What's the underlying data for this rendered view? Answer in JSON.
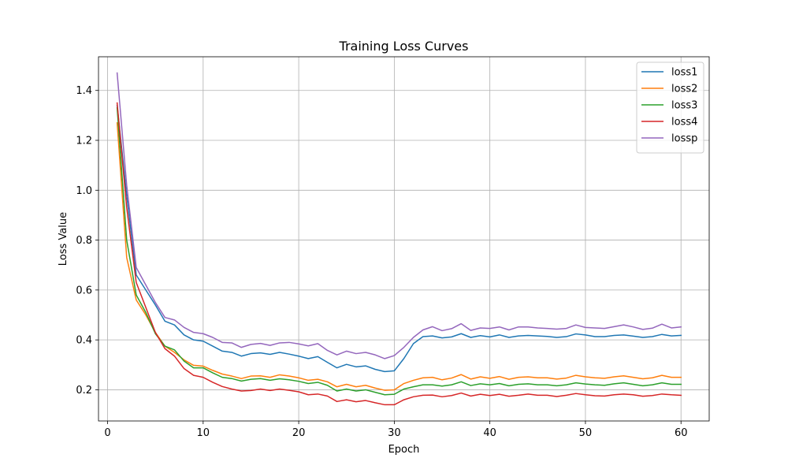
{
  "chart_data": {
    "type": "line",
    "title": "Training Loss Curves",
    "xlabel": "Epoch",
    "ylabel": "Loss Value",
    "xlim": [
      -0.95,
      62.95
    ],
    "ylim": [
      0.075,
      1.535
    ],
    "xticks": [
      0,
      10,
      20,
      30,
      40,
      50,
      60
    ],
    "yticks": [
      0.2,
      0.4,
      0.6,
      0.8,
      1.0,
      1.2,
      1.4
    ],
    "ytick_labels": [
      "0.2",
      "0.4",
      "0.6",
      "0.8",
      "1.0",
      "1.2",
      "1.4"
    ],
    "grid": true,
    "legend_position": "top-right",
    "x": [
      1,
      2,
      3,
      4,
      5,
      6,
      7,
      8,
      9,
      10,
      11,
      12,
      13,
      14,
      15,
      16,
      17,
      18,
      19,
      20,
      21,
      22,
      23,
      24,
      25,
      26,
      27,
      28,
      29,
      30,
      31,
      32,
      33,
      34,
      35,
      36,
      37,
      38,
      39,
      40,
      41,
      42,
      43,
      44,
      45,
      46,
      47,
      48,
      49,
      50,
      51,
      52,
      53,
      54,
      55,
      56,
      57,
      58,
      59,
      60
    ],
    "series": [
      {
        "name": "loss1",
        "color": "#1f77b4",
        "values": [
          1.34,
          0.98,
          0.66,
          0.6,
          0.54,
          0.475,
          0.46,
          0.42,
          0.4,
          0.395,
          0.375,
          0.355,
          0.35,
          0.335,
          0.345,
          0.348,
          0.342,
          0.35,
          0.343,
          0.335,
          0.325,
          0.333,
          0.31,
          0.288,
          0.302,
          0.292,
          0.296,
          0.282,
          0.273,
          0.276,
          0.325,
          0.385,
          0.413,
          0.416,
          0.408,
          0.412,
          0.425,
          0.41,
          0.417,
          0.412,
          0.42,
          0.41,
          0.416,
          0.418,
          0.416,
          0.414,
          0.41,
          0.413,
          0.424,
          0.42,
          0.413,
          0.413,
          0.418,
          0.42,
          0.415,
          0.41,
          0.413,
          0.422,
          0.416,
          0.418
        ]
      },
      {
        "name": "loss2",
        "color": "#ff7f0e",
        "values": [
          1.27,
          0.73,
          0.56,
          0.5,
          0.43,
          0.375,
          0.35,
          0.32,
          0.298,
          0.295,
          0.278,
          0.263,
          0.255,
          0.245,
          0.255,
          0.256,
          0.25,
          0.26,
          0.255,
          0.248,
          0.238,
          0.242,
          0.232,
          0.212,
          0.222,
          0.212,
          0.218,
          0.207,
          0.198,
          0.2,
          0.225,
          0.238,
          0.248,
          0.25,
          0.24,
          0.247,
          0.261,
          0.243,
          0.252,
          0.246,
          0.253,
          0.242,
          0.25,
          0.252,
          0.248,
          0.248,
          0.243,
          0.247,
          0.258,
          0.252,
          0.248,
          0.246,
          0.252,
          0.256,
          0.25,
          0.244,
          0.248,
          0.258,
          0.25,
          0.25
        ]
      },
      {
        "name": "loss3",
        "color": "#2ca02c",
        "values": [
          1.33,
          0.8,
          0.58,
          0.51,
          0.425,
          0.375,
          0.36,
          0.315,
          0.288,
          0.288,
          0.268,
          0.25,
          0.245,
          0.235,
          0.242,
          0.245,
          0.238,
          0.244,
          0.24,
          0.234,
          0.225,
          0.23,
          0.218,
          0.195,
          0.203,
          0.195,
          0.2,
          0.19,
          0.18,
          0.182,
          0.203,
          0.212,
          0.22,
          0.22,
          0.215,
          0.22,
          0.232,
          0.217,
          0.224,
          0.22,
          0.225,
          0.216,
          0.222,
          0.224,
          0.22,
          0.22,
          0.216,
          0.22,
          0.228,
          0.223,
          0.22,
          0.218,
          0.224,
          0.228,
          0.222,
          0.216,
          0.22,
          0.228,
          0.222,
          0.222
        ]
      },
      {
        "name": "loss4",
        "color": "#d62728",
        "values": [
          1.35,
          0.93,
          0.63,
          0.53,
          0.43,
          0.365,
          0.335,
          0.285,
          0.258,
          0.25,
          0.23,
          0.213,
          0.203,
          0.195,
          0.197,
          0.203,
          0.197,
          0.203,
          0.198,
          0.192,
          0.18,
          0.183,
          0.175,
          0.153,
          0.16,
          0.152,
          0.157,
          0.148,
          0.14,
          0.14,
          0.16,
          0.172,
          0.178,
          0.179,
          0.172,
          0.177,
          0.187,
          0.175,
          0.182,
          0.177,
          0.182,
          0.174,
          0.178,
          0.183,
          0.178,
          0.178,
          0.173,
          0.178,
          0.185,
          0.18,
          0.176,
          0.175,
          0.18,
          0.183,
          0.18,
          0.174,
          0.177,
          0.183,
          0.18,
          0.178
        ]
      },
      {
        "name": "lossp",
        "color": "#9467bd",
        "values": [
          1.47,
          1.02,
          0.69,
          0.62,
          0.55,
          0.49,
          0.48,
          0.45,
          0.43,
          0.425,
          0.41,
          0.39,
          0.388,
          0.37,
          0.382,
          0.386,
          0.378,
          0.388,
          0.39,
          0.384,
          0.376,
          0.385,
          0.358,
          0.34,
          0.355,
          0.345,
          0.35,
          0.34,
          0.325,
          0.337,
          0.37,
          0.41,
          0.44,
          0.453,
          0.437,
          0.445,
          0.465,
          0.438,
          0.448,
          0.446,
          0.452,
          0.44,
          0.452,
          0.452,
          0.448,
          0.446,
          0.443,
          0.446,
          0.46,
          0.45,
          0.448,
          0.446,
          0.453,
          0.46,
          0.452,
          0.442,
          0.447,
          0.463,
          0.448,
          0.452
        ]
      }
    ]
  }
}
